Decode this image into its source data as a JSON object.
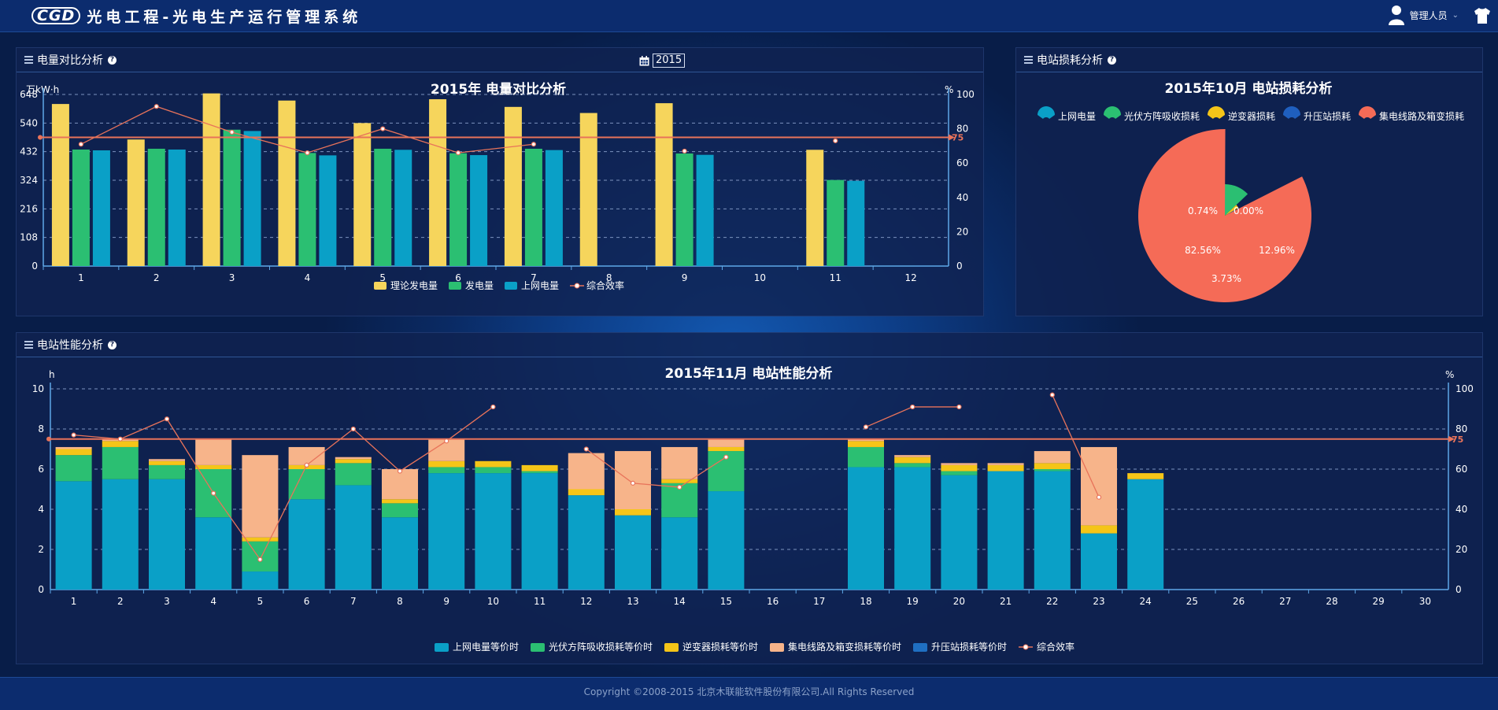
{
  "app": {
    "logo": "CGD",
    "title": "光电工程-光电生产运行管理系统",
    "user": "管理人员"
  },
  "panels": {
    "energy": "电量对比分析",
    "loss": "电站损耗分析",
    "perf": "电站性能分析"
  },
  "year_selector": {
    "value": "2015"
  },
  "footer": {
    "copyright": "Copyright ©2008-2015 北京木联能软件股份有限公司.All Rights Reserved"
  },
  "colors": {
    "theory": "#f6d55c",
    "gen": "#2bbf72",
    "grid": "#0aa0c7",
    "line": "#e8735a",
    "inverter": "#f5c518",
    "collector": "#f7b48a",
    "station": "#1f6fc2",
    "pie_grid": "#0aa0c7",
    "pie_array": "#2bbf72",
    "pie_inverter": "#f5c518",
    "pie_station": "#1f5fbf",
    "pie_collector": "#f56b57"
  },
  "chart_data": [
    {
      "type": "bar",
      "title": "2015年 电量对比分析",
      "ylabel": "万kW·h",
      "y2label": "%",
      "categories": [
        "1",
        "2",
        "3",
        "4",
        "5",
        "6",
        "7",
        "8",
        "9",
        "10",
        "11",
        "12"
      ],
      "yticks": [
        0,
        108,
        216,
        324,
        432,
        540,
        648
      ],
      "y2ticks": [
        0,
        20,
        40,
        60,
        80,
        100
      ],
      "ylim": [
        0,
        648
      ],
      "y2lim": [
        0,
        100
      ],
      "markline": {
        "value": 75,
        "label": "75"
      },
      "series": [
        {
          "name": "理论发电量",
          "values": [
            612,
            478,
            652,
            625,
            540,
            630,
            601,
            578,
            615,
            null,
            439,
            null
          ]
        },
        {
          "name": "发电量",
          "values": [
            440,
            443,
            515,
            427,
            443,
            426,
            443,
            null,
            425,
            null,
            325,
            null
          ]
        },
        {
          "name": "上网电量",
          "values": [
            437,
            440,
            510,
            418,
            439,
            419,
            438,
            null,
            420,
            null,
            322,
            null
          ]
        },
        {
          "name": "综合效率",
          "values": [
            71,
            93,
            78,
            66,
            80,
            66,
            71,
            null,
            67,
            null,
            73,
            null
          ]
        }
      ],
      "legend": [
        "理论发电量",
        "发电量",
        "上网电量",
        "综合效率"
      ]
    },
    {
      "type": "pie",
      "title": "2015年10月 电站损耗分析",
      "legend": [
        "上网电量",
        "光伏方阵吸收损耗",
        "逆变器损耗",
        "升压站损耗",
        "集电线路及箱变损耗"
      ],
      "slices": [
        {
          "name": "上网电量",
          "value": 0.0,
          "label": ""
        },
        {
          "name": "光伏方阵吸收损耗",
          "value": 12.96,
          "label": "12.96%"
        },
        {
          "name": "逆变器损耗",
          "value": 3.73,
          "label": "3.73%"
        },
        {
          "name": "升压站损耗",
          "value": 0.74,
          "label": "0.74%"
        },
        {
          "name": "集电线路及箱变损耗",
          "value": 82.56,
          "label": "82.56%"
        }
      ],
      "extra_labels": [
        "0.74%",
        "0.00%"
      ]
    },
    {
      "type": "bar",
      "title": "2015年11月 电站性能分析",
      "ylabel": "h",
      "y2label": "%",
      "categories": [
        "1",
        "2",
        "3",
        "4",
        "5",
        "6",
        "7",
        "8",
        "9",
        "10",
        "11",
        "12",
        "13",
        "14",
        "15",
        "16",
        "17",
        "18",
        "19",
        "20",
        "21",
        "22",
        "23",
        "24",
        "25",
        "26",
        "27",
        "28",
        "29",
        "30"
      ],
      "yticks": [
        0,
        2,
        4,
        6,
        8,
        10
      ],
      "y2ticks": [
        0,
        20,
        40,
        60,
        80,
        100
      ],
      "ylim": [
        0,
        10
      ],
      "y2lim": [
        0,
        100
      ],
      "markline": {
        "value": 75,
        "label": "75"
      },
      "series": [
        {
          "name": "上网电量等价时",
          "values": [
            5.4,
            5.5,
            5.5,
            3.6,
            0.9,
            4.5,
            5.2,
            3.6,
            5.8,
            5.8,
            5.8,
            4.7,
            3.7,
            3.6,
            4.9,
            null,
            null,
            6.1,
            6.1,
            5.7,
            5.9,
            5.9,
            2.8,
            5.5,
            null,
            null,
            null,
            null,
            null,
            null
          ]
        },
        {
          "name": "光伏方阵吸收损耗等价时",
          "values": [
            1.3,
            1.6,
            0.7,
            2.4,
            1.5,
            1.5,
            1.1,
            0.7,
            0.3,
            0.3,
            0.1,
            0.0,
            0.0,
            1.7,
            2.0,
            null,
            null,
            1.0,
            0.2,
            0.2,
            0.0,
            0.1,
            0.0,
            0.0,
            null,
            null,
            null,
            null,
            null,
            null
          ]
        },
        {
          "name": "逆变器损耗等价时",
          "values": [
            0.3,
            0.3,
            0.2,
            0.2,
            0.2,
            0.2,
            0.2,
            0.2,
            0.3,
            0.3,
            0.3,
            0.3,
            0.3,
            0.2,
            0.2,
            null,
            null,
            0.3,
            0.3,
            0.3,
            0.3,
            0.3,
            0.4,
            0.3,
            null,
            null,
            null,
            null,
            null,
            null
          ]
        },
        {
          "name": "集电线路及箱变损耗等价时",
          "values": [
            0.1,
            0.1,
            0.1,
            1.3,
            4.1,
            0.9,
            0.1,
            1.5,
            1.1,
            0.0,
            0.0,
            1.8,
            2.9,
            1.6,
            0.4,
            null,
            null,
            0.1,
            0.1,
            0.1,
            0.1,
            0.6,
            3.9,
            0.0,
            null,
            null,
            null,
            null,
            null,
            null
          ]
        },
        {
          "name": "升压站损耗等价时",
          "values": [
            0.0,
            0.0,
            0.0,
            0.0,
            0.0,
            0.0,
            0.0,
            0.0,
            0.0,
            0.0,
            0.0,
            0.0,
            0.0,
            0.0,
            0.0,
            null,
            null,
            0.0,
            0.0,
            0.0,
            0.0,
            0.0,
            0.0,
            0.0,
            null,
            null,
            null,
            null,
            null,
            null
          ]
        },
        {
          "name": "综合效率",
          "values": [
            77,
            75,
            85,
            48,
            15,
            62,
            80,
            59,
            74,
            91,
            null,
            70,
            53,
            51,
            66,
            null,
            null,
            81,
            91,
            91,
            null,
            97,
            46,
            null,
            null,
            null,
            null,
            null,
            null,
            null
          ]
        }
      ],
      "legend": [
        "上网电量等价时",
        "光伏方阵吸收损耗等价时",
        "逆变器损耗等价时",
        "集电线路及箱变损耗等价时",
        "升压站损耗等价时",
        "综合效率"
      ]
    }
  ]
}
